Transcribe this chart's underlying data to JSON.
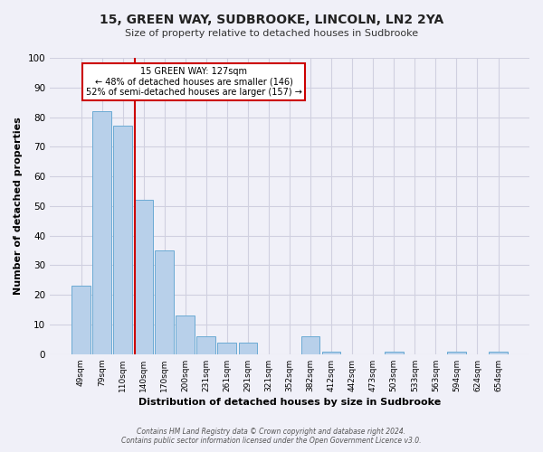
{
  "title": "15, GREEN WAY, SUDBROOKE, LINCOLN, LN2 2YA",
  "subtitle": "Size of property relative to detached houses in Sudbrooke",
  "xlabel": "Distribution of detached houses by size in Sudbrooke",
  "ylabel": "Number of detached properties",
  "bar_labels": [
    "49sqm",
    "79sqm",
    "110sqm",
    "140sqm",
    "170sqm",
    "200sqm",
    "231sqm",
    "261sqm",
    "291sqm",
    "321sqm",
    "352sqm",
    "382sqm",
    "412sqm",
    "442sqm",
    "473sqm",
    "503sqm",
    "533sqm",
    "563sqm",
    "594sqm",
    "624sqm",
    "654sqm"
  ],
  "bar_values": [
    23,
    82,
    77,
    52,
    35,
    13,
    6,
    4,
    4,
    0,
    0,
    6,
    1,
    0,
    0,
    1,
    0,
    0,
    1,
    0,
    1
  ],
  "bar_color": "#b8d0ea",
  "bar_edgecolor": "#6aaad4",
  "ylim": [
    0,
    100
  ],
  "yticks": [
    0,
    10,
    20,
    30,
    40,
    50,
    60,
    70,
    80,
    90,
    100
  ],
  "vline_color": "#cc0000",
  "annotation_title": "15 GREEN WAY: 127sqm",
  "annotation_line1": "← 48% of detached houses are smaller (146)",
  "annotation_line2": "52% of semi-detached houses are larger (157) →",
  "annotation_box_facecolor": "#ffffff",
  "annotation_box_edgecolor": "#cc0000",
  "footer_line1": "Contains HM Land Registry data © Crown copyright and database right 2024.",
  "footer_line2": "Contains public sector information licensed under the Open Government Licence v3.0.",
  "background_color": "#f0f0f8",
  "grid_color": "#d0d0e0"
}
